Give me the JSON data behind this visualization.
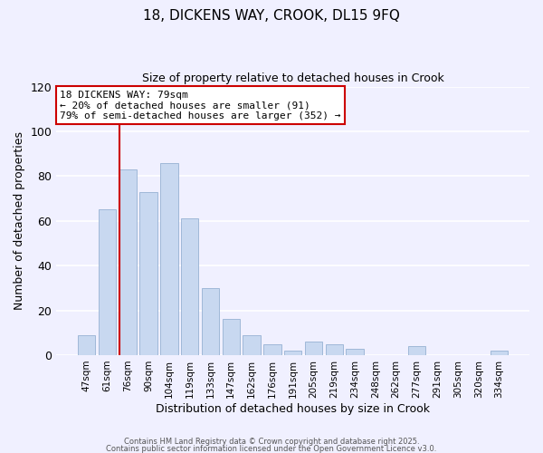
{
  "title": "18, DICKENS WAY, CROOK, DL15 9FQ",
  "subtitle": "Size of property relative to detached houses in Crook",
  "xlabel": "Distribution of detached houses by size in Crook",
  "ylabel": "Number of detached properties",
  "bar_labels": [
    "47sqm",
    "61sqm",
    "76sqm",
    "90sqm",
    "104sqm",
    "119sqm",
    "133sqm",
    "147sqm",
    "162sqm",
    "176sqm",
    "191sqm",
    "205sqm",
    "219sqm",
    "234sqm",
    "248sqm",
    "262sqm",
    "277sqm",
    "291sqm",
    "305sqm",
    "320sqm",
    "334sqm"
  ],
  "bar_values": [
    9,
    65,
    83,
    73,
    86,
    61,
    30,
    16,
    9,
    5,
    2,
    6,
    5,
    3,
    0,
    0,
    4,
    0,
    0,
    0,
    2
  ],
  "bar_color": "#c8d8f0",
  "bar_edge_color": "#a0b8d8",
  "vline_x_index": 2,
  "vline_color": "#cc0000",
  "annotation_title": "18 DICKENS WAY: 79sqm",
  "annotation_line1": "← 20% of detached houses are smaller (91)",
  "annotation_line2": "79% of semi-detached houses are larger (352) →",
  "ylim": [
    0,
    120
  ],
  "yticks": [
    0,
    20,
    40,
    60,
    80,
    100,
    120
  ],
  "footer1": "Contains HM Land Registry data © Crown copyright and database right 2025.",
  "footer2": "Contains public sector information licensed under the Open Government Licence v3.0.",
  "background_color": "#f0f0ff",
  "grid_color": "#ffffff",
  "title_fontsize": 11,
  "subtitle_fontsize": 9
}
